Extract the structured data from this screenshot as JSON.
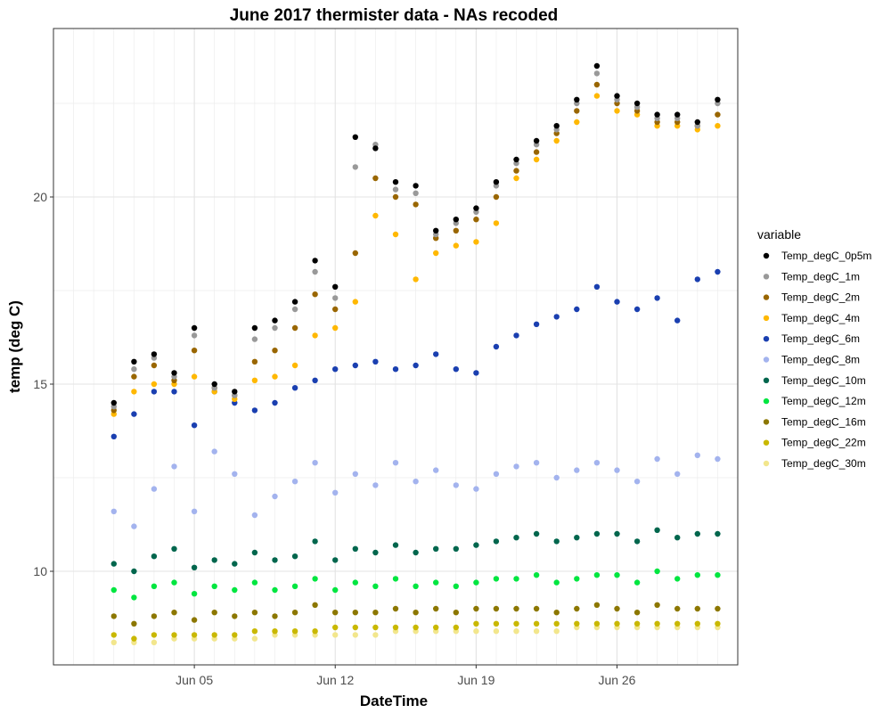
{
  "chart_data": {
    "type": "scatter",
    "title": "June 2017 thermister data - NAs recoded",
    "xlabel": "DateTime",
    "ylabel": "temp (deg C)",
    "xlim": [
      "2017-05-29",
      "2017-07-02"
    ],
    "ylim": [
      7.5,
      24.5
    ],
    "x_ticks": [
      {
        "date": "2017-06-05",
        "label": "Jun 05"
      },
      {
        "date": "2017-06-12",
        "label": "Jun 12"
      },
      {
        "date": "2017-06-19",
        "label": "Jun 19"
      },
      {
        "date": "2017-06-26",
        "label": "Jun 26"
      }
    ],
    "y_ticks": [
      10,
      15,
      20
    ],
    "grid": true,
    "legend": {
      "title": "variable",
      "placement": "right"
    },
    "series": [
      {
        "name": "Temp_degC_0p5m",
        "color": "#000000",
        "x": [
          "2017-06-01",
          "2017-06-02",
          "2017-06-03",
          "2017-06-04",
          "2017-06-05",
          "2017-06-06",
          "2017-06-07",
          "2017-06-08",
          "2017-06-09",
          "2017-06-10",
          "2017-06-11",
          "2017-06-12",
          "2017-06-13",
          "2017-06-14",
          "2017-06-15",
          "2017-06-16",
          "2017-06-17",
          "2017-06-18",
          "2017-06-19",
          "2017-06-20",
          "2017-06-21",
          "2017-06-22",
          "2017-06-23",
          "2017-06-24",
          "2017-06-25",
          "2017-06-26",
          "2017-06-27",
          "2017-06-28",
          "2017-06-29",
          "2017-06-30",
          "2017-07-01"
        ],
        "y": [
          14.5,
          15.6,
          15.8,
          15.3,
          16.5,
          15.0,
          14.8,
          16.5,
          16.7,
          17.2,
          18.3,
          17.6,
          21.6,
          21.3,
          20.4,
          20.3,
          19.1,
          19.4,
          19.7,
          20.4,
          21.0,
          21.5,
          21.9,
          22.6,
          23.5,
          22.7,
          22.5,
          22.2,
          22.2,
          22.0,
          22.6
        ]
      },
      {
        "name": "Temp_degC_1m",
        "color": "#999999",
        "x": [
          "2017-06-01",
          "2017-06-02",
          "2017-06-03",
          "2017-06-04",
          "2017-06-05",
          "2017-06-06",
          "2017-06-07",
          "2017-06-08",
          "2017-06-09",
          "2017-06-10",
          "2017-06-11",
          "2017-06-12",
          "2017-06-13",
          "2017-06-14",
          "2017-06-15",
          "2017-06-16",
          "2017-06-17",
          "2017-06-18",
          "2017-06-19",
          "2017-06-20",
          "2017-06-21",
          "2017-06-22",
          "2017-06-23",
          "2017-06-24",
          "2017-06-25",
          "2017-06-26",
          "2017-06-27",
          "2017-06-28",
          "2017-06-29",
          "2017-06-30",
          "2017-07-01"
        ],
        "y": [
          14.4,
          15.4,
          15.7,
          15.2,
          16.3,
          14.9,
          14.7,
          16.2,
          16.5,
          17.0,
          18.0,
          17.3,
          20.8,
          21.4,
          20.2,
          20.1,
          19.0,
          19.3,
          19.6,
          20.3,
          20.9,
          21.4,
          21.8,
          22.5,
          23.3,
          22.6,
          22.4,
          22.1,
          22.1,
          21.9,
          22.5
        ]
      },
      {
        "name": "Temp_degC_2m",
        "color": "#996600",
        "x": [
          "2017-06-01",
          "2017-06-02",
          "2017-06-03",
          "2017-06-04",
          "2017-06-05",
          "2017-06-06",
          "2017-06-07",
          "2017-06-08",
          "2017-06-09",
          "2017-06-10",
          "2017-06-11",
          "2017-06-12",
          "2017-06-13",
          "2017-06-14",
          "2017-06-15",
          "2017-06-16",
          "2017-06-17",
          "2017-06-18",
          "2017-06-19",
          "2017-06-20",
          "2017-06-21",
          "2017-06-22",
          "2017-06-23",
          "2017-06-24",
          "2017-06-25",
          "2017-06-26",
          "2017-06-27",
          "2017-06-28",
          "2017-06-29",
          "2017-06-30",
          "2017-07-01"
        ],
        "y": [
          14.3,
          15.2,
          15.5,
          15.1,
          15.9,
          14.9,
          14.7,
          15.6,
          15.9,
          16.5,
          17.4,
          17.0,
          18.5,
          20.5,
          20.0,
          19.8,
          18.9,
          19.1,
          19.4,
          20.0,
          20.7,
          21.2,
          21.7,
          22.3,
          23.0,
          22.5,
          22.3,
          22.0,
          22.0,
          21.9,
          22.2
        ]
      },
      {
        "name": "Temp_degC_4m",
        "color": "#FFB800",
        "x": [
          "2017-06-01",
          "2017-06-02",
          "2017-06-03",
          "2017-06-04",
          "2017-06-05",
          "2017-06-06",
          "2017-06-07",
          "2017-06-08",
          "2017-06-09",
          "2017-06-10",
          "2017-06-11",
          "2017-06-12",
          "2017-06-13",
          "2017-06-14",
          "2017-06-15",
          "2017-06-16",
          "2017-06-17",
          "2017-06-18",
          "2017-06-19",
          "2017-06-20",
          "2017-06-21",
          "2017-06-22",
          "2017-06-23",
          "2017-06-24",
          "2017-06-25",
          "2017-06-26",
          "2017-06-27",
          "2017-06-28",
          "2017-06-29",
          "2017-06-30",
          "2017-07-01"
        ],
        "y": [
          14.2,
          14.8,
          15.0,
          15.0,
          15.2,
          14.8,
          14.6,
          15.1,
          15.2,
          15.5,
          16.3,
          16.5,
          17.2,
          19.5,
          19.0,
          17.8,
          18.5,
          18.7,
          18.8,
          19.3,
          20.5,
          21.0,
          21.5,
          22.0,
          22.7,
          22.3,
          22.2,
          21.9,
          21.9,
          21.8,
          21.9
        ]
      },
      {
        "name": "Temp_degC_6m",
        "color": "#1A3FB0",
        "x": [
          "2017-06-01",
          "2017-06-02",
          "2017-06-03",
          "2017-06-04",
          "2017-06-05",
          "2017-06-06",
          "2017-06-07",
          "2017-06-08",
          "2017-06-09",
          "2017-06-10",
          "2017-06-11",
          "2017-06-12",
          "2017-06-13",
          "2017-06-14",
          "2017-06-15",
          "2017-06-16",
          "2017-06-17",
          "2017-06-18",
          "2017-06-19",
          "2017-06-20",
          "2017-06-21",
          "2017-06-22",
          "2017-06-23",
          "2017-06-24",
          "2017-06-25",
          "2017-06-26",
          "2017-06-27",
          "2017-06-28",
          "2017-06-29",
          "2017-06-30",
          "2017-07-01"
        ],
        "y": [
          13.6,
          14.2,
          14.8,
          14.8,
          13.9,
          14.8,
          14.5,
          14.3,
          14.5,
          14.9,
          15.1,
          15.4,
          15.5,
          15.6,
          15.4,
          15.5,
          15.8,
          15.4,
          15.3,
          16.0,
          16.3,
          16.6,
          16.8,
          17.0,
          17.6,
          17.2,
          17.0,
          17.3,
          16.7,
          17.8,
          18.0
        ]
      },
      {
        "name": "Temp_degC_8m",
        "color": "#A3B3EE",
        "x": [
          "2017-06-01",
          "2017-06-02",
          "2017-06-03",
          "2017-06-04",
          "2017-06-05",
          "2017-06-06",
          "2017-06-07",
          "2017-06-08",
          "2017-06-09",
          "2017-06-10",
          "2017-06-11",
          "2017-06-12",
          "2017-06-13",
          "2017-06-14",
          "2017-06-15",
          "2017-06-16",
          "2017-06-17",
          "2017-06-18",
          "2017-06-19",
          "2017-06-20",
          "2017-06-21",
          "2017-06-22",
          "2017-06-23",
          "2017-06-24",
          "2017-06-25",
          "2017-06-26",
          "2017-06-27",
          "2017-06-28",
          "2017-06-29",
          "2017-06-30",
          "2017-07-01"
        ],
        "y": [
          11.6,
          11.2,
          12.2,
          12.8,
          11.6,
          13.2,
          12.6,
          11.5,
          12.0,
          12.4,
          12.9,
          12.1,
          12.6,
          12.3,
          12.9,
          12.4,
          12.7,
          12.3,
          12.2,
          12.6,
          12.8,
          12.9,
          12.5,
          12.7,
          12.9,
          12.7,
          12.4,
          13.0,
          12.6,
          13.1,
          13.0
        ]
      },
      {
        "name": "Temp_degC_10m",
        "color": "#00664D",
        "x": [
          "2017-06-01",
          "2017-06-02",
          "2017-06-03",
          "2017-06-04",
          "2017-06-05",
          "2017-06-06",
          "2017-06-07",
          "2017-06-08",
          "2017-06-09",
          "2017-06-10",
          "2017-06-11",
          "2017-06-12",
          "2017-06-13",
          "2017-06-14",
          "2017-06-15",
          "2017-06-16",
          "2017-06-17",
          "2017-06-18",
          "2017-06-19",
          "2017-06-20",
          "2017-06-21",
          "2017-06-22",
          "2017-06-23",
          "2017-06-24",
          "2017-06-25",
          "2017-06-26",
          "2017-06-27",
          "2017-06-28",
          "2017-06-29",
          "2017-06-30",
          "2017-07-01"
        ],
        "y": [
          10.2,
          10.0,
          10.4,
          10.6,
          10.1,
          10.3,
          10.2,
          10.5,
          10.3,
          10.4,
          10.8,
          10.3,
          10.6,
          10.5,
          10.7,
          10.5,
          10.6,
          10.6,
          10.7,
          10.8,
          10.9,
          11.0,
          10.8,
          10.9,
          11.0,
          11.0,
          10.8,
          11.1,
          10.9,
          11.0,
          11.0
        ]
      },
      {
        "name": "Temp_degC_12m",
        "color": "#00E640",
        "x": [
          "2017-06-01",
          "2017-06-02",
          "2017-06-03",
          "2017-06-04",
          "2017-06-05",
          "2017-06-06",
          "2017-06-07",
          "2017-06-08",
          "2017-06-09",
          "2017-06-10",
          "2017-06-11",
          "2017-06-12",
          "2017-06-13",
          "2017-06-14",
          "2017-06-15",
          "2017-06-16",
          "2017-06-17",
          "2017-06-18",
          "2017-06-19",
          "2017-06-20",
          "2017-06-21",
          "2017-06-22",
          "2017-06-23",
          "2017-06-24",
          "2017-06-25",
          "2017-06-26",
          "2017-06-27",
          "2017-06-28",
          "2017-06-29",
          "2017-06-30",
          "2017-07-01"
        ],
        "y": [
          9.5,
          9.3,
          9.6,
          9.7,
          9.4,
          9.6,
          9.5,
          9.7,
          9.5,
          9.6,
          9.8,
          9.5,
          9.7,
          9.6,
          9.8,
          9.6,
          9.7,
          9.6,
          9.7,
          9.8,
          9.8,
          9.9,
          9.7,
          9.8,
          9.9,
          9.9,
          9.7,
          10.0,
          9.8,
          9.9,
          9.9
        ]
      },
      {
        "name": "Temp_degC_16m",
        "color": "#8C7700",
        "x": [
          "2017-06-01",
          "2017-06-02",
          "2017-06-03",
          "2017-06-04",
          "2017-06-05",
          "2017-06-06",
          "2017-06-07",
          "2017-06-08",
          "2017-06-09",
          "2017-06-10",
          "2017-06-11",
          "2017-06-12",
          "2017-06-13",
          "2017-06-14",
          "2017-06-15",
          "2017-06-16",
          "2017-06-17",
          "2017-06-18",
          "2017-06-19",
          "2017-06-20",
          "2017-06-21",
          "2017-06-22",
          "2017-06-23",
          "2017-06-24",
          "2017-06-25",
          "2017-06-26",
          "2017-06-27",
          "2017-06-28",
          "2017-06-29",
          "2017-06-30",
          "2017-07-01"
        ],
        "y": [
          8.8,
          8.6,
          8.8,
          8.9,
          8.7,
          8.9,
          8.8,
          8.9,
          8.8,
          8.9,
          9.1,
          8.9,
          8.9,
          8.9,
          9.0,
          8.9,
          9.0,
          8.9,
          9.0,
          9.0,
          9.0,
          9.0,
          8.9,
          9.0,
          9.1,
          9.0,
          8.9,
          9.1,
          9.0,
          9.0,
          9.0
        ]
      },
      {
        "name": "Temp_degC_22m",
        "color": "#C9B800",
        "x": [
          "2017-06-01",
          "2017-06-02",
          "2017-06-03",
          "2017-06-04",
          "2017-06-05",
          "2017-06-06",
          "2017-06-07",
          "2017-06-08",
          "2017-06-09",
          "2017-06-10",
          "2017-06-11",
          "2017-06-12",
          "2017-06-13",
          "2017-06-14",
          "2017-06-15",
          "2017-06-16",
          "2017-06-17",
          "2017-06-18",
          "2017-06-19",
          "2017-06-20",
          "2017-06-21",
          "2017-06-22",
          "2017-06-23",
          "2017-06-24",
          "2017-06-25",
          "2017-06-26",
          "2017-06-27",
          "2017-06-28",
          "2017-06-29",
          "2017-06-30",
          "2017-07-01"
        ],
        "y": [
          8.3,
          8.2,
          8.3,
          8.3,
          8.3,
          8.3,
          8.3,
          8.4,
          8.4,
          8.4,
          8.4,
          8.5,
          8.5,
          8.5,
          8.5,
          8.5,
          8.5,
          8.5,
          8.6,
          8.6,
          8.6,
          8.6,
          8.6,
          8.6,
          8.6,
          8.6,
          8.6,
          8.6,
          8.6,
          8.6,
          8.6
        ]
      },
      {
        "name": "Temp_degC_30m",
        "color": "#F2E68C",
        "x": [
          "2017-06-01",
          "2017-06-02",
          "2017-06-03",
          "2017-06-04",
          "2017-06-05",
          "2017-06-06",
          "2017-06-07",
          "2017-06-08",
          "2017-06-09",
          "2017-06-10",
          "2017-06-11",
          "2017-06-12",
          "2017-06-13",
          "2017-06-14",
          "2017-06-15",
          "2017-06-16",
          "2017-06-17",
          "2017-06-18",
          "2017-06-19",
          "2017-06-20",
          "2017-06-21",
          "2017-06-22",
          "2017-06-23",
          "2017-06-24",
          "2017-06-25",
          "2017-06-26",
          "2017-06-27",
          "2017-06-28",
          "2017-06-29",
          "2017-06-30",
          "2017-07-01"
        ],
        "y": [
          8.1,
          8.1,
          8.1,
          8.2,
          8.2,
          8.2,
          8.2,
          8.2,
          8.3,
          8.3,
          8.3,
          8.3,
          8.3,
          8.3,
          8.4,
          8.4,
          8.4,
          8.4,
          8.4,
          8.4,
          8.4,
          8.4,
          8.4,
          8.5,
          8.5,
          8.5,
          8.5,
          8.5,
          8.5,
          8.5,
          8.5
        ]
      }
    ]
  }
}
